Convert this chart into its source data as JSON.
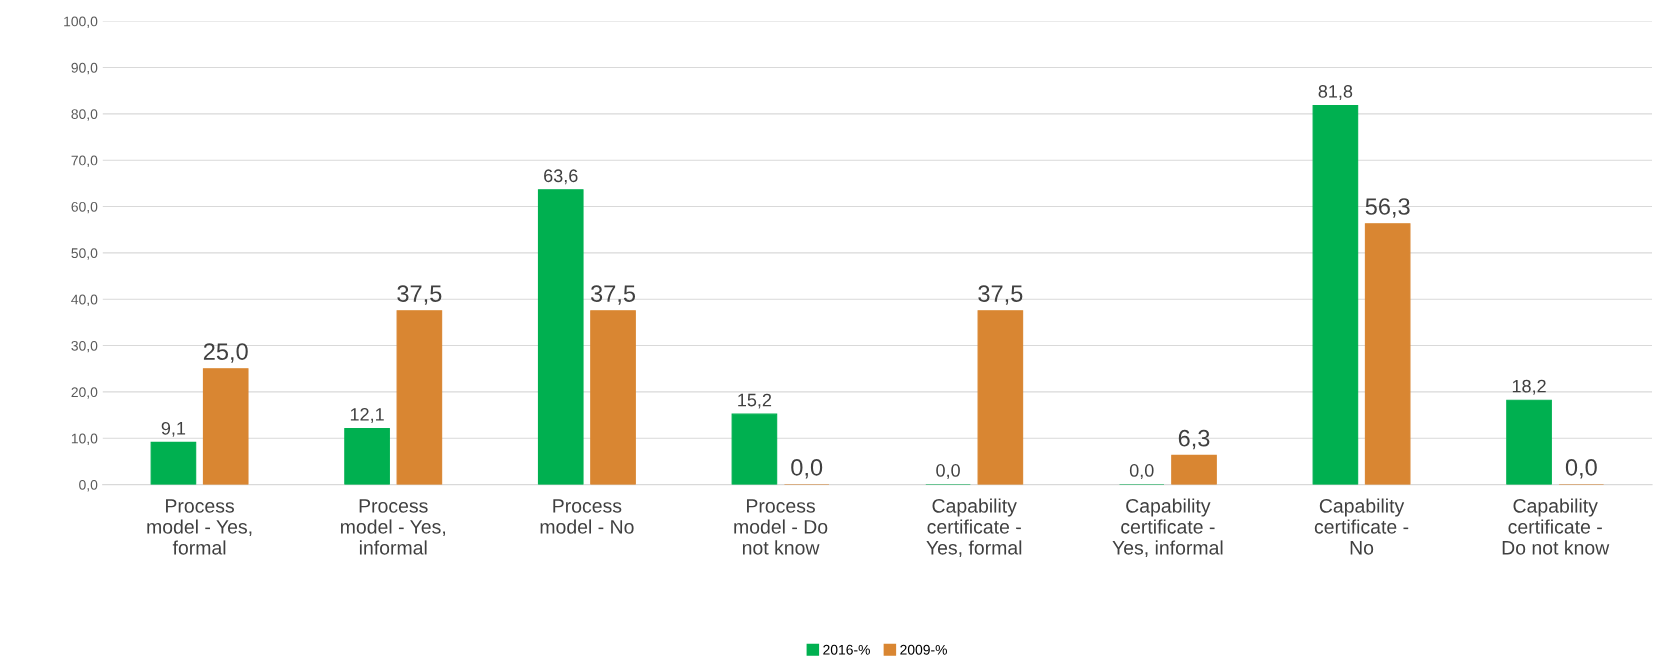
{
  "chart_data": {
    "type": "bar",
    "categories": [
      "Process\nmodel - Yes,\nformal",
      "Process\nmodel - Yes,\ninformal",
      "Process\nmodel - No",
      "Process\nmodel - Do\nnot know",
      "Capability\ncertificate -\nYes, formal",
      "Capability\ncertificate -\nYes, informal",
      "Capability\ncertificate -\nNo",
      "Capability\ncertificate -\nDo not know"
    ],
    "series": [
      {
        "name": "2016-%",
        "color": "#00b050",
        "values": [
          9.1,
          12.1,
          63.6,
          15.2,
          0.0,
          0.0,
          81.8,
          18.2
        ],
        "value_labels": [
          "9,1",
          "12,1",
          "63,6",
          "15,2",
          "0,0",
          "0,0",
          "81,8",
          "18,2"
        ]
      },
      {
        "name": "2009-%",
        "color": "#d98632",
        "values": [
          25.0,
          37.5,
          37.5,
          0.0,
          37.5,
          6.3,
          56.3,
          0.0
        ],
        "value_labels": [
          "25,0",
          "37,5",
          "37,5",
          "0,0",
          "37,5",
          "6,3",
          "56,3",
          "0,0"
        ]
      }
    ],
    "ylim": [
      0,
      100
    ],
    "yticks": [
      {
        "value": 0,
        "label": "0,0"
      },
      {
        "value": 10,
        "label": "10,0"
      },
      {
        "value": 20,
        "label": "20,0"
      },
      {
        "value": 30,
        "label": "30,0"
      },
      {
        "value": 40,
        "label": "40,0"
      },
      {
        "value": 50,
        "label": "50,0"
      },
      {
        "value": 60,
        "label": "60,0"
      },
      {
        "value": 70,
        "label": "70,0"
      },
      {
        "value": 80,
        "label": "80,0"
      },
      {
        "value": 90,
        "label": "90,0"
      },
      {
        "value": 100,
        "label": "100,0"
      }
    ],
    "grid": "y",
    "legend": "bottom"
  }
}
